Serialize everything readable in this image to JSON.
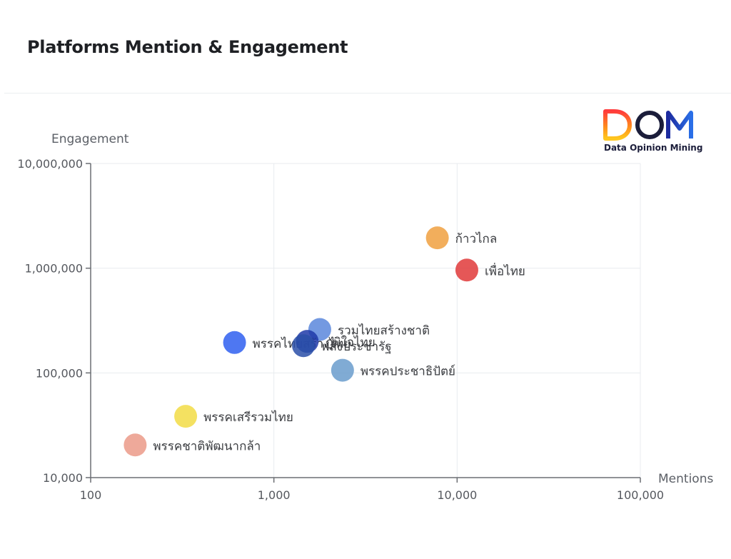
{
  "header": {
    "title": "Platforms Mention & Engagement"
  },
  "logo": {
    "mark": "DOM",
    "subtitle": "Data Opinion Mining"
  },
  "chart_data": {
    "type": "scatter",
    "title": "Platforms Mention & Engagement",
    "xlabel": "Mentions",
    "ylabel": "Engagement",
    "xscale": "log",
    "yscale": "log",
    "xlim": [
      100,
      100000
    ],
    "ylim": [
      10000,
      10000000
    ],
    "xticks": [
      100,
      1000,
      10000,
      100000
    ],
    "yticks": [
      10000,
      100000,
      1000000,
      10000000
    ],
    "xtick_labels": [
      "100",
      "1,000",
      "10,000",
      "100,000"
    ],
    "ytick_labels": [
      "10,000",
      "100,000",
      "1,000,000",
      "10,000,000"
    ],
    "grid": true,
    "points": [
      {
        "name": "ก้าวไกล",
        "x": 7800,
        "y": 1950000,
        "color": "#f0a040"
      },
      {
        "name": "เพื่อไทย",
        "x": 11300,
        "y": 960000,
        "color": "#e03a3a"
      },
      {
        "name": "รวมไทยสร้างชาติ",
        "x": 1780,
        "y": 260000,
        "color": "#5b87dc"
      },
      {
        "name": "พรรคไทยสร้างไทย",
        "x": 610,
        "y": 195000,
        "color": "#2f5ff0"
      },
      {
        "name": "ภูมิใจไทย",
        "x": 1520,
        "y": 200000,
        "color": "#1e3aa8"
      },
      {
        "name": "พลังประชารัฐ",
        "x": 1450,
        "y": 182000,
        "color": "#2a4fa8"
      },
      {
        "name": "พรรคประชาธิปัตย์",
        "x": 2370,
        "y": 106000,
        "color": "#6a9ccc"
      },
      {
        "name": "พรรคเสรีรวมไทย",
        "x": 330,
        "y": 38500,
        "color": "#f2dc45"
      },
      {
        "name": "พรรคชาติพัฒนากล้า",
        "x": 175,
        "y": 20500,
        "color": "#eb9a88"
      }
    ]
  }
}
